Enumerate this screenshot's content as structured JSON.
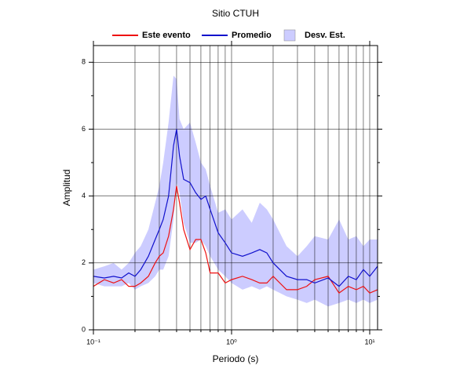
{
  "chart_data": {
    "type": "line",
    "title": "Sitio CTUH",
    "x_label": "Periodo (s)",
    "y_label": "Amplitud",
    "log_x": true,
    "grid": true,
    "xlim": [
      0.1,
      11.4
    ],
    "ylim": [
      0,
      8.5
    ],
    "xticks": [
      {
        "value": 0.1,
        "label": "10⁻¹"
      },
      {
        "value": 1,
        "label": "10⁰"
      },
      {
        "value": 10,
        "label": "10¹"
      }
    ],
    "x_minor_ticks": [
      0.2,
      0.3,
      0.4,
      0.5,
      0.6,
      0.7,
      0.8,
      0.9,
      2,
      3,
      4,
      5,
      6,
      7,
      8,
      9
    ],
    "yticks": [
      0,
      2,
      4,
      6,
      8
    ],
    "y_minor_ticks": [
      1,
      3,
      5,
      7
    ],
    "x": [
      0.1,
      0.12,
      0.14,
      0.16,
      0.18,
      0.2,
      0.22,
      0.25,
      0.28,
      0.3,
      0.32,
      0.35,
      0.38,
      0.4,
      0.42,
      0.45,
      0.5,
      0.55,
      0.6,
      0.65,
      0.7,
      0.8,
      0.9,
      1.0,
      1.2,
      1.4,
      1.6,
      1.8,
      2.0,
      2.5,
      3,
      3.5,
      4,
      5,
      6,
      7,
      8,
      9,
      10,
      11.4
    ],
    "band": {
      "name": "Desv. Est.",
      "color": "#ccccff",
      "upper": [
        1.8,
        1.9,
        2.0,
        1.8,
        2.0,
        2.3,
        2.5,
        3.0,
        3.8,
        4.3,
        5.0,
        6.2,
        7.6,
        7.5,
        6.3,
        6.0,
        6.2,
        5.6,
        5.0,
        4.8,
        4.3,
        3.5,
        3.6,
        3.3,
        3.6,
        3.2,
        3.8,
        3.6,
        3.3,
        2.5,
        2.2,
        2.5,
        2.8,
        2.7,
        3.3,
        2.7,
        2.8,
        2.5,
        2.7,
        2.7
      ],
      "lower": [
        1.4,
        1.3,
        1.3,
        1.3,
        1.4,
        1.2,
        1.3,
        1.4,
        1.6,
        1.8,
        1.8,
        2.2,
        3.3,
        4.4,
        4.1,
        3.2,
        2.6,
        2.6,
        2.7,
        2.5,
        2.2,
        1.8,
        1.6,
        1.4,
        1.2,
        1.3,
        1.2,
        1.3,
        1.2,
        1.0,
        0.9,
        0.8,
        0.9,
        0.7,
        0.8,
        0.9,
        0.8,
        0.9,
        0.8,
        0.9
      ]
    },
    "series": [
      {
        "name": "Este evento",
        "color": "#ee1111",
        "values": [
          1.3,
          1.5,
          1.4,
          1.5,
          1.3,
          1.3,
          1.4,
          1.6,
          2.0,
          2.2,
          2.3,
          2.8,
          3.6,
          4.3,
          3.8,
          3.0,
          2.4,
          2.7,
          2.7,
          2.3,
          1.7,
          1.7,
          1.4,
          1.5,
          1.6,
          1.5,
          1.4,
          1.4,
          1.6,
          1.2,
          1.2,
          1.3,
          1.5,
          1.6,
          1.1,
          1.3,
          1.2,
          1.3,
          1.1,
          1.2
        ]
      },
      {
        "name": "Promedio",
        "color": "#1111cc",
        "values": [
          1.6,
          1.55,
          1.6,
          1.55,
          1.7,
          1.6,
          1.8,
          2.2,
          2.7,
          3.0,
          3.3,
          4.0,
          5.5,
          6.0,
          5.2,
          4.5,
          4.4,
          4.1,
          3.9,
          4.0,
          3.6,
          2.9,
          2.6,
          2.3,
          2.2,
          2.3,
          2.4,
          2.3,
          2.0,
          1.6,
          1.5,
          1.5,
          1.4,
          1.55,
          1.3,
          1.6,
          1.5,
          1.8,
          1.6,
          1.9
        ]
      }
    ]
  }
}
